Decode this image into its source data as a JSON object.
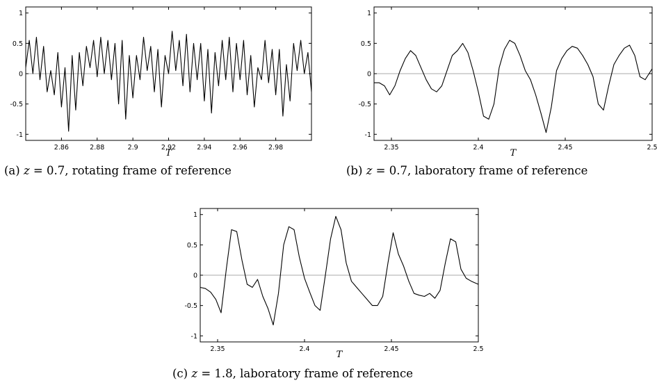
{
  "chart_data": [
    {
      "type": "line",
      "xlabel": "T",
      "xlim": [
        2.84,
        3.0
      ],
      "ylim": [
        -1.1,
        1.1
      ],
      "xticks": [
        "2.86",
        "2.88",
        "2.9",
        "2.92",
        "2.94",
        "2.96",
        "2.98"
      ],
      "yticks": [
        "-1",
        "-0.5",
        "0",
        "0.5",
        "1"
      ],
      "zero_line": true,
      "caption": {
        "prefix": "(a) ",
        "z_symbol": "z",
        "z_value": " = 0.7",
        "frame": ", rotating frame of reference"
      },
      "x": [
        2.84,
        2.842,
        2.844,
        2.846,
        2.848,
        2.85,
        2.852,
        2.854,
        2.856,
        2.858,
        2.86,
        2.862,
        2.864,
        2.866,
        2.868,
        2.87,
        2.872,
        2.874,
        2.876,
        2.878,
        2.88,
        2.882,
        2.884,
        2.886,
        2.888,
        2.89,
        2.892,
        2.894,
        2.896,
        2.898,
        2.9,
        2.902,
        2.904,
        2.906,
        2.908,
        2.91,
        2.912,
        2.914,
        2.916,
        2.918,
        2.92,
        2.922,
        2.924,
        2.926,
        2.928,
        2.93,
        2.932,
        2.934,
        2.936,
        2.938,
        2.94,
        2.942,
        2.944,
        2.946,
        2.948,
        2.95,
        2.952,
        2.954,
        2.956,
        2.958,
        2.96,
        2.962,
        2.964,
        2.966,
        2.968,
        2.97,
        2.972,
        2.974,
        2.976,
        2.978,
        2.98,
        2.982,
        2.984,
        2.986,
        2.988,
        2.99,
        2.992,
        2.994,
        2.996,
        2.998,
        3.0
      ],
      "y": [
        0.1,
        0.55,
        0.0,
        0.6,
        -0.1,
        0.45,
        -0.3,
        0.05,
        -0.35,
        0.35,
        -0.55,
        0.1,
        -0.95,
        0.3,
        -0.6,
        0.35,
        -0.2,
        0.45,
        0.1,
        0.55,
        -0.05,
        0.6,
        0.0,
        0.55,
        -0.1,
        0.5,
        -0.5,
        0.55,
        -0.75,
        0.3,
        -0.4,
        0.3,
        -0.1,
        0.6,
        0.05,
        0.45,
        -0.3,
        0.4,
        -0.55,
        0.3,
        0.0,
        0.7,
        0.05,
        0.55,
        -0.2,
        0.65,
        -0.3,
        0.5,
        -0.1,
        0.5,
        -0.45,
        0.4,
        -0.65,
        0.35,
        -0.2,
        0.55,
        -0.1,
        0.6,
        -0.3,
        0.5,
        -0.1,
        0.55,
        -0.35,
        0.3,
        -0.55,
        0.1,
        -0.1,
        0.55,
        -0.15,
        0.4,
        -0.35,
        0.4,
        -0.7,
        0.15,
        -0.45,
        0.5,
        0.05,
        0.55,
        0.0,
        0.35,
        -0.3
      ]
    },
    {
      "type": "line",
      "xlabel": "T",
      "xlim": [
        2.34,
        2.5
      ],
      "ylim": [
        -1.1,
        1.1
      ],
      "xticks": [
        "2.35",
        "2.4",
        "2.45",
        "2.5"
      ],
      "yticks": [
        "-1",
        "-0.5",
        "0",
        "0.5",
        "1"
      ],
      "zero_line": true,
      "caption": {
        "prefix": "(b) ",
        "z_symbol": "z",
        "z_value": " = 0.7",
        "frame": ", laboratory frame of reference"
      },
      "x": [
        2.34,
        2.343,
        2.346,
        2.349,
        2.352,
        2.355,
        2.358,
        2.361,
        2.364,
        2.367,
        2.37,
        2.373,
        2.376,
        2.379,
        2.382,
        2.385,
        2.388,
        2.391,
        2.394,
        2.397,
        2.4,
        2.403,
        2.406,
        2.409,
        2.412,
        2.415,
        2.418,
        2.421,
        2.424,
        2.427,
        2.43,
        2.433,
        2.436,
        2.439,
        2.442,
        2.445,
        2.448,
        2.451,
        2.454,
        2.457,
        2.46,
        2.463,
        2.466,
        2.469,
        2.472,
        2.475,
        2.478,
        2.481,
        2.484,
        2.487,
        2.49,
        2.493,
        2.496,
        2.5
      ],
      "y": [
        -0.15,
        -0.15,
        -0.2,
        -0.35,
        -0.2,
        0.05,
        0.25,
        0.38,
        0.3,
        0.1,
        -0.1,
        -0.25,
        -0.3,
        -0.2,
        0.05,
        0.3,
        0.38,
        0.5,
        0.35,
        0.05,
        -0.3,
        -0.7,
        -0.75,
        -0.5,
        0.1,
        0.4,
        0.55,
        0.5,
        0.3,
        0.05,
        -0.1,
        -0.35,
        -0.65,
        -0.97,
        -0.55,
        0.05,
        0.25,
        0.38,
        0.45,
        0.42,
        0.3,
        0.15,
        -0.05,
        -0.5,
        -0.6,
        -0.2,
        0.15,
        0.3,
        0.42,
        0.47,
        0.3,
        -0.05,
        -0.1,
        0.08
      ]
    },
    {
      "type": "line",
      "xlabel": "T",
      "xlim": [
        2.34,
        2.5
      ],
      "ylim": [
        -1.1,
        1.1
      ],
      "xticks": [
        "2.35",
        "2.4",
        "2.45",
        "2.5"
      ],
      "yticks": [
        "-1",
        "-0.5",
        "0",
        "0.5",
        "1"
      ],
      "zero_line": true,
      "caption": {
        "prefix": "(c) ",
        "z_symbol": "z",
        "z_value": " = 1.8",
        "frame": ", laboratory frame of reference"
      },
      "x": [
        2.34,
        2.343,
        2.346,
        2.349,
        2.352,
        2.355,
        2.358,
        2.361,
        2.364,
        2.367,
        2.37,
        2.373,
        2.376,
        2.379,
        2.382,
        2.385,
        2.388,
        2.391,
        2.394,
        2.397,
        2.4,
        2.403,
        2.406,
        2.409,
        2.412,
        2.415,
        2.418,
        2.421,
        2.424,
        2.427,
        2.43,
        2.433,
        2.436,
        2.439,
        2.442,
        2.445,
        2.448,
        2.451,
        2.454,
        2.457,
        2.46,
        2.463,
        2.466,
        2.469,
        2.472,
        2.475,
        2.478,
        2.481,
        2.484,
        2.487,
        2.49,
        2.493,
        2.496,
        2.5
      ],
      "y": [
        -0.2,
        -0.22,
        -0.28,
        -0.4,
        -0.62,
        0.1,
        0.75,
        0.72,
        0.25,
        -0.15,
        -0.2,
        -0.07,
        -0.35,
        -0.55,
        -0.82,
        -0.3,
        0.5,
        0.8,
        0.75,
        0.3,
        -0.05,
        -0.28,
        -0.5,
        -0.58,
        0.0,
        0.6,
        0.97,
        0.75,
        0.2,
        -0.1,
        -0.2,
        -0.3,
        -0.4,
        -0.5,
        -0.5,
        -0.35,
        0.2,
        0.7,
        0.35,
        0.15,
        -0.1,
        -0.3,
        -0.33,
        -0.35,
        -0.3,
        -0.38,
        -0.25,
        0.2,
        0.6,
        0.55,
        0.1,
        -0.05,
        -0.1,
        -0.15
      ]
    }
  ]
}
